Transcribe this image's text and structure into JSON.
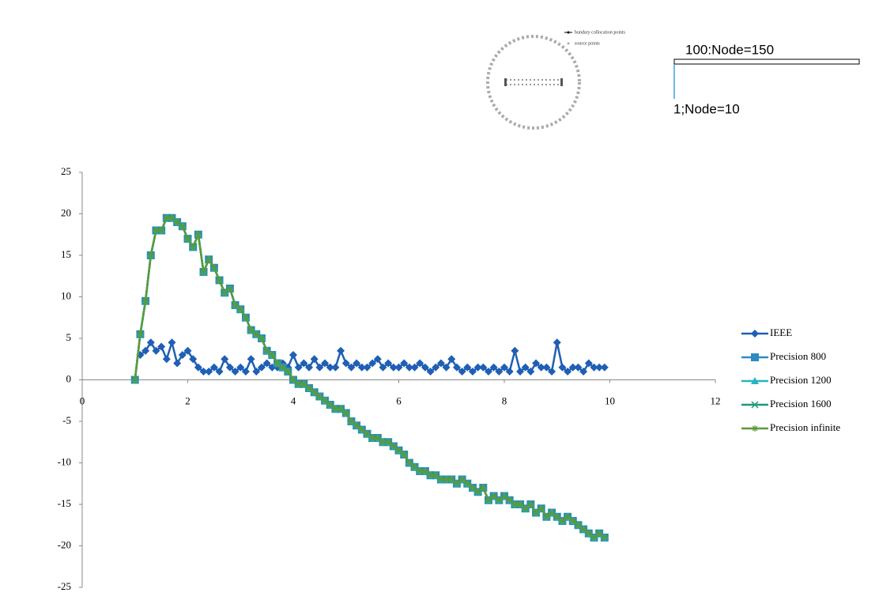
{
  "diagram": {
    "legend": [
      "bundary collocation points",
      "source points"
    ],
    "top_label": "100:Node=150",
    "bottom_label": "1;Node=10"
  },
  "chart_data": {
    "type": "line",
    "x": [
      1,
      1.1,
      1.2,
      1.3,
      1.4,
      1.5,
      1.6,
      1.7,
      1.8,
      1.9,
      2,
      2.1,
      2.2,
      2.3,
      2.4,
      2.5,
      2.6,
      2.7,
      2.8,
      2.9,
      3,
      3.1,
      3.2,
      3.3,
      3.4,
      3.5,
      3.6,
      3.7,
      3.8,
      3.9,
      4,
      4.1,
      4.2,
      4.3,
      4.4,
      4.5,
      4.6,
      4.7,
      4.8,
      4.9,
      5,
      5.1,
      5.2,
      5.3,
      5.4,
      5.5,
      5.6,
      5.7,
      5.8,
      5.9,
      6,
      6.1,
      6.2,
      6.3,
      6.4,
      6.5,
      6.6,
      6.7,
      6.8,
      6.9,
      7,
      7.1,
      7.2,
      7.3,
      7.4,
      7.5,
      7.6,
      7.7,
      7.8,
      7.9,
      8,
      8.1,
      8.2,
      8.3,
      8.4,
      8.5,
      8.6,
      8.7,
      8.8,
      8.9,
      9,
      9.1,
      9.2,
      9.3,
      9.4,
      9.5,
      9.6,
      9.7,
      9.8,
      9.9
    ],
    "xlim": [
      0,
      12
    ],
    "xticks": [
      0,
      2,
      4,
      6,
      8,
      10,
      12
    ],
    "ylim": [
      -25,
      25
    ],
    "yticks": [
      -25,
      -20,
      -15,
      -10,
      -5,
      0,
      5,
      10,
      15,
      20,
      25
    ],
    "series": [
      {
        "name": "IEEE",
        "color": "#1f5fb4",
        "marker": "diamond",
        "values": [
          null,
          3,
          3.5,
          4.5,
          3.5,
          4,
          2.5,
          4.5,
          2,
          3,
          3.5,
          2.5,
          1.5,
          1,
          1,
          1.5,
          1,
          2.5,
          1.5,
          1,
          1.5,
          1,
          2.5,
          1,
          1.5,
          2,
          1.5,
          1.5,
          2,
          1.5,
          3,
          1.5,
          2,
          1.5,
          2.5,
          1.5,
          2,
          1.5,
          1.5,
          3.5,
          2,
          1.5,
          2,
          1.5,
          1.5,
          2,
          2.5,
          1.5,
          2,
          1.5,
          1.5,
          2,
          1.5,
          1.5,
          2,
          1.5,
          1,
          1.5,
          2,
          1.5,
          2.5,
          1.5,
          1,
          1.5,
          1,
          1.5,
          1.5,
          1,
          1.5,
          1,
          1.5,
          1,
          3.5,
          1,
          1.5,
          1,
          2,
          1.5,
          1.5,
          1,
          4.5,
          1.5,
          1,
          1.5,
          1.5,
          1,
          2,
          1.5,
          1.5,
          1.5
        ]
      },
      {
        "name": "Precision 800",
        "color": "#2e8bc0",
        "marker": "square",
        "values": [
          0,
          5.5,
          9.5,
          15,
          18,
          18,
          19.5,
          19.5,
          19,
          18.5,
          17,
          16,
          17.5,
          13,
          14.5,
          13.5,
          12,
          10.5,
          11,
          9,
          8.5,
          7.5,
          6,
          5.5,
          5,
          3.5,
          3,
          2,
          1.5,
          1,
          0,
          -0.5,
          -0.5,
          -1,
          -1.5,
          -2,
          -2.5,
          -3,
          -3.5,
          -3.5,
          -4,
          -5,
          -5.5,
          -6,
          -6.5,
          -7,
          -7,
          -7.5,
          -7.5,
          -8,
          -8.5,
          -9,
          -10,
          -10.5,
          -11,
          -11,
          -11.5,
          -11.5,
          -12,
          -12,
          -12,
          -12.5,
          -12,
          -12.5,
          -13,
          -13.5,
          -13,
          -14.5,
          -14,
          -14.5,
          -14,
          -14.5,
          -15,
          -15,
          -15.5,
          -15,
          -16,
          -15.5,
          -16.5,
          -16,
          -16.5,
          -17,
          -16.5,
          -17,
          -17.5,
          -18,
          -18.5,
          -19,
          -18.5,
          -19
        ]
      },
      {
        "name": "Precision 1200",
        "color": "#25b5c0",
        "marker": "triangle",
        "values": [
          0,
          5.5,
          9.5,
          15,
          18,
          18,
          19.5,
          19.5,
          19,
          18.5,
          17,
          16,
          17.5,
          13,
          14.5,
          13.5,
          12,
          10.5,
          11,
          9,
          8.5,
          7.5,
          6,
          5.5,
          5,
          3.5,
          3,
          2,
          1.5,
          1,
          0,
          -0.5,
          -0.5,
          -1,
          -1.5,
          -2,
          -2.5,
          -3,
          -3.5,
          -3.5,
          -4,
          -5,
          -5.5,
          -6,
          -6.5,
          -7,
          -7,
          -7.5,
          -7.5,
          -8,
          -8.5,
          -9,
          -10,
          -10.5,
          -11,
          -11,
          -11.5,
          -11.5,
          -12,
          -12,
          -12,
          -12.5,
          -12,
          -12.5,
          -13,
          -13.5,
          -13,
          -14.5,
          -14,
          -14.5,
          -14,
          -14.5,
          -15,
          -15,
          -15.5,
          -15,
          -16,
          -15.5,
          -16.5,
          -16,
          -16.5,
          -17,
          -16.5,
          -17,
          -17.5,
          -18,
          -18.5,
          -19,
          -18.5,
          -19
        ]
      },
      {
        "name": "Precision 1600",
        "color": "#1a9a7a",
        "marker": "x",
        "values": [
          0,
          5.5,
          9.5,
          15,
          18,
          18,
          19.5,
          19.5,
          19,
          18.5,
          17,
          16,
          17.5,
          13,
          14.5,
          13.5,
          12,
          10.5,
          11,
          9,
          8.5,
          7.5,
          6,
          5.5,
          5,
          3.5,
          3,
          2,
          1.5,
          1,
          0,
          -0.5,
          -0.5,
          -1,
          -1.5,
          -2,
          -2.5,
          -3,
          -3.5,
          -3.5,
          -4,
          -5,
          -5.5,
          -6,
          -6.5,
          -7,
          -7,
          -7.5,
          -7.5,
          -8,
          -8.5,
          -9,
          -10,
          -10.5,
          -11,
          -11,
          -11.5,
          -11.5,
          -12,
          -12,
          -12,
          -12.5,
          -12,
          -12.5,
          -13,
          -13.5,
          -13,
          -14.5,
          -14,
          -14.5,
          -14,
          -14.5,
          -15,
          -15,
          -15.5,
          -15,
          -16,
          -15.5,
          -16.5,
          -16,
          -16.5,
          -17,
          -16.5,
          -17,
          -17.5,
          -18,
          -18.5,
          -19,
          -18.5,
          -19
        ]
      },
      {
        "name": "Precision infinite",
        "color": "#5a9a3a",
        "marker": "star",
        "values": [
          0,
          5.5,
          9.5,
          15,
          18,
          18,
          19.5,
          19.5,
          19,
          18.5,
          17,
          16,
          17.5,
          13,
          14.5,
          13.5,
          12,
          10.5,
          11,
          9,
          8.5,
          7.5,
          6,
          5.5,
          5,
          3.5,
          3,
          2,
          1.5,
          1,
          0,
          -0.5,
          -0.5,
          -1,
          -1.5,
          -2,
          -2.5,
          -3,
          -3.5,
          -3.5,
          -4,
          -5,
          -5.5,
          -6,
          -6.5,
          -7,
          -7,
          -7.5,
          -7.5,
          -8,
          -8.5,
          -9,
          -10,
          -10.5,
          -11,
          -11,
          -11.5,
          -11.5,
          -12,
          -12,
          -12,
          -12.5,
          -12,
          -12.5,
          -13,
          -13.5,
          -13,
          -14.5,
          -14,
          -14.5,
          -14,
          -14.5,
          -15,
          -15,
          -15.5,
          -15,
          -16,
          -15.5,
          -16.5,
          -16,
          -16.5,
          -17,
          -16.5,
          -17,
          -17.5,
          -18,
          -18.5,
          -19,
          -18.5,
          -19
        ]
      }
    ]
  }
}
